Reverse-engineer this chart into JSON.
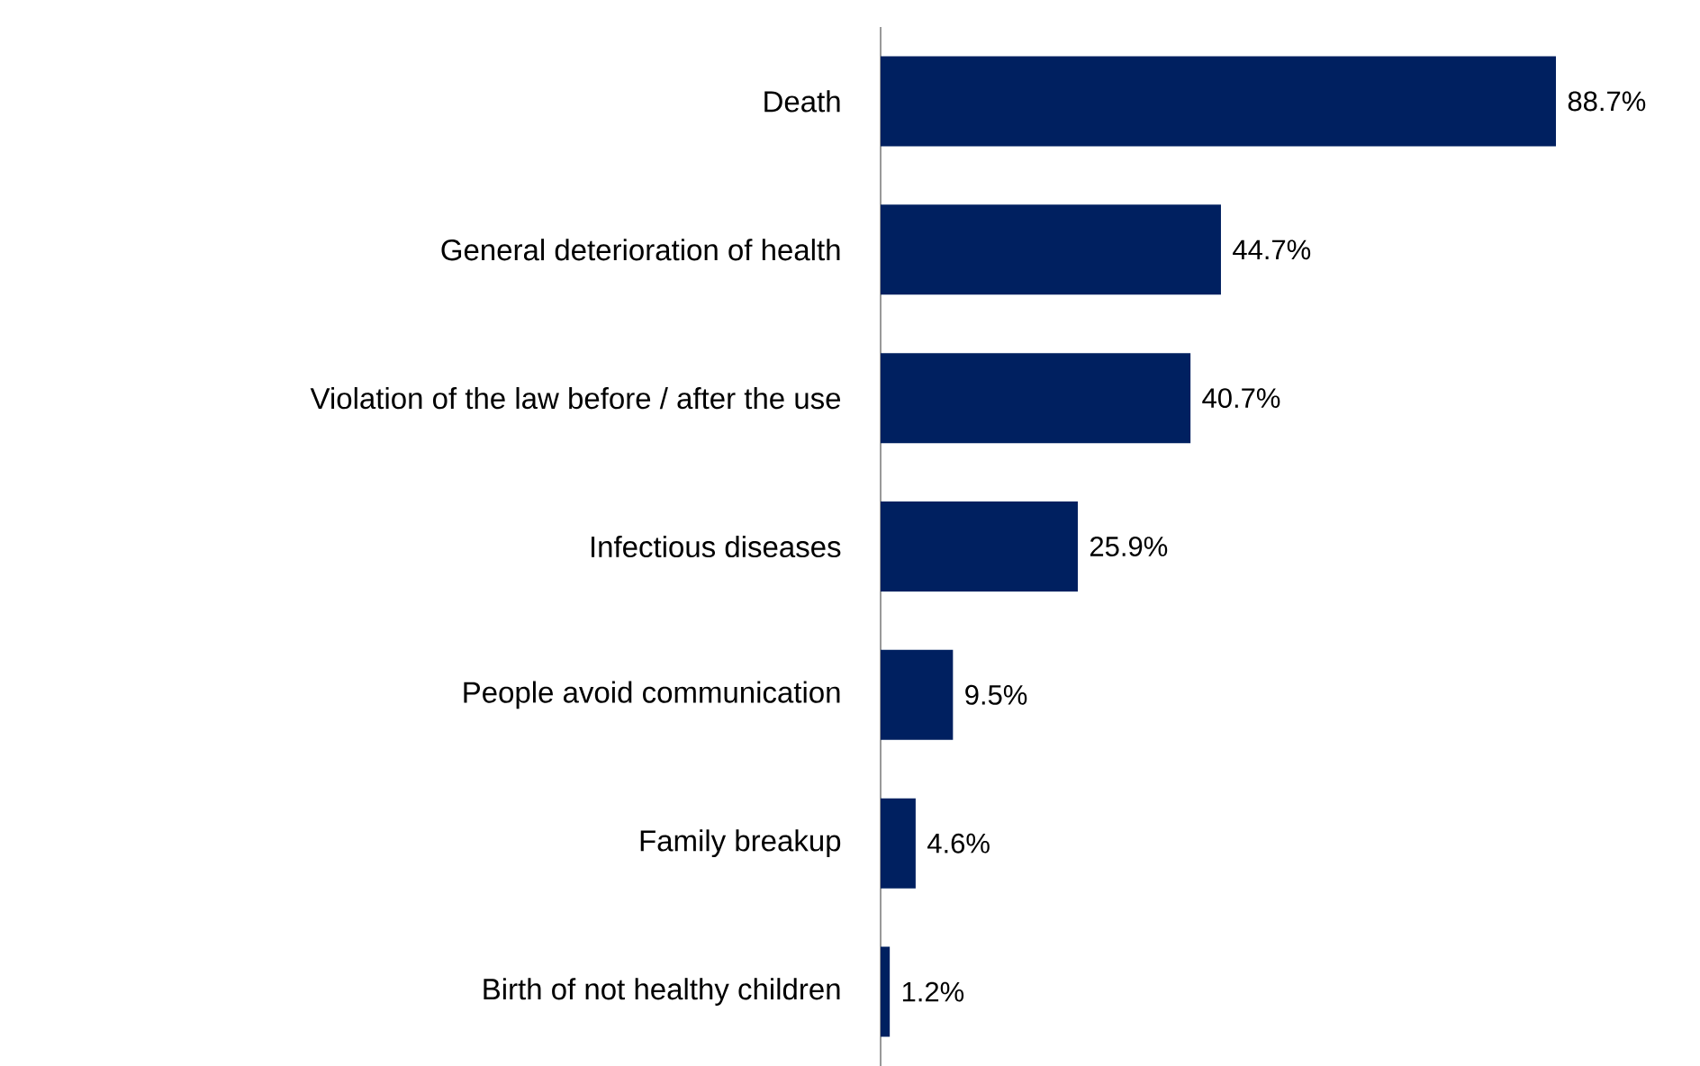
{
  "chart_data": {
    "type": "bar",
    "orientation": "horizontal",
    "categories": [
      "Death",
      "General deterioration of health",
      "Violation of the law before / after the use",
      "Infectious diseases",
      "People avoid communication",
      "Family breakup",
      "Birth of not healthy children"
    ],
    "values": [
      88.7,
      44.7,
      40.7,
      25.9,
      9.5,
      4.6,
      1.2
    ],
    "value_labels": [
      "88.7%",
      "44.7%",
      "40.7%",
      "25.9%",
      "9.5%",
      "4.6%",
      "1.2%"
    ],
    "color": "#002060"
  }
}
